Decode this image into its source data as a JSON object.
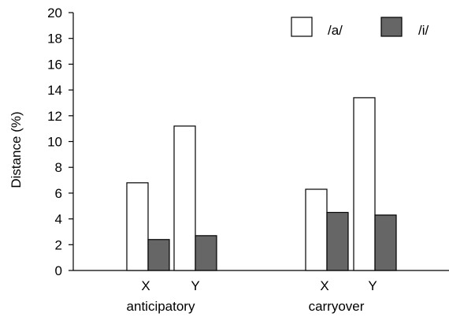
{
  "chart_data": {
    "type": "bar",
    "ylabel": "Distance (%)",
    "ylim": [
      0,
      20
    ],
    "yticks": [
      0,
      2,
      4,
      6,
      8,
      10,
      12,
      14,
      16,
      18,
      20
    ],
    "grid": false,
    "legend_placement": "top-right",
    "groups": [
      {
        "label": "anticipatory",
        "categories": [
          "X",
          "Y"
        ]
      },
      {
        "label": "carryover",
        "categories": [
          "X",
          "Y"
        ]
      }
    ],
    "series": [
      {
        "name": "/a/",
        "color": "#ffffff",
        "values": [
          6.8,
          11.2,
          6.3,
          13.4
        ]
      },
      {
        "name": "/i/",
        "color": "#666666",
        "values": [
          2.4,
          2.7,
          4.5,
          4.3
        ]
      }
    ]
  }
}
